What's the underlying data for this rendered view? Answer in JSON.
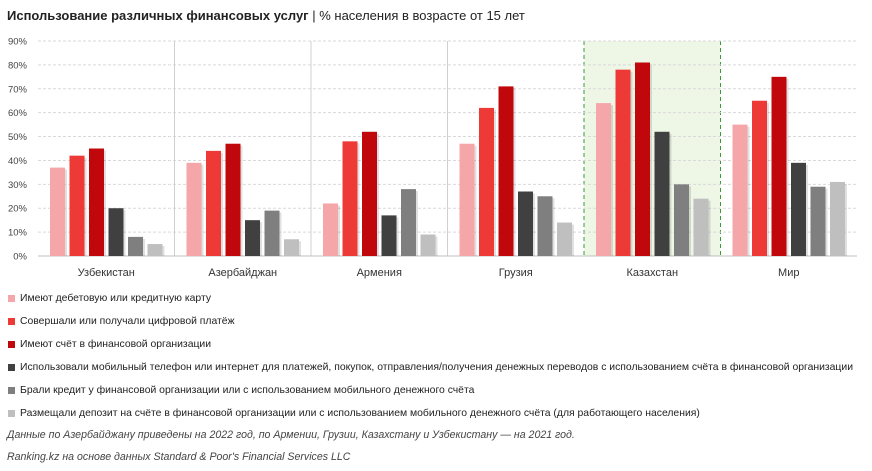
{
  "title": {
    "bold": "Использование различных финансовых услуг",
    "separator": " | ",
    "rest": "% населения в возрасте от 15 лет"
  },
  "chart_data": {
    "type": "bar",
    "categories": [
      "Узбекистан",
      "Азербайджан",
      "Армения",
      "Грузия",
      "Казахстан",
      "Мир"
    ],
    "highlighted_category": "Казахстан",
    "ylim": [
      0,
      90
    ],
    "yticks": [
      "0%",
      "10%",
      "20%",
      "30%",
      "40%",
      "50%",
      "60%",
      "70%",
      "80%",
      "90%"
    ],
    "grid": true,
    "legend_position": "bottom",
    "series": [
      {
        "name": "Имеют дебетовую или кредитную карту",
        "color": "#f4a6a8",
        "values": [
          37,
          39,
          22,
          47,
          64,
          55
        ]
      },
      {
        "name": "Совершали или получали цифровой платёж",
        "color": "#ee3a36",
        "values": [
          42,
          44,
          48,
          62,
          78,
          65
        ]
      },
      {
        "name": "Имеют счёт в финансовой организации",
        "color": "#c0080c",
        "values": [
          45,
          47,
          52,
          71,
          81,
          75
        ]
      },
      {
        "name": "Использовали мобильный телефон или интернет для платежей, покупок, отправления/получения денежных переводов с использованием счёта в финансовой организации",
        "color": "#404040",
        "values": [
          20,
          15,
          17,
          27,
          52,
          39
        ]
      },
      {
        "name": "Брали кредит у финансовой организации или с использованием мобильного денежного счёта",
        "color": "#7f7f7f",
        "values": [
          8,
          19,
          28,
          25,
          30,
          29
        ]
      },
      {
        "name": "Размещали депозит на счёте в финансовой организации или с использованием мобильного денежного счёта (для работающего населения)",
        "color": "#bfbfbf",
        "values": [
          5,
          7,
          9,
          14,
          24,
          31
        ]
      }
    ]
  },
  "footnote": "Данные по Азербайджану приведены на 2022 год, по Армении, Грузии, Казахстану и Узбекистану — на 2021 год.",
  "source": "Ranking.kz на основе данных Standard & Poor's Financial Services LLC"
}
